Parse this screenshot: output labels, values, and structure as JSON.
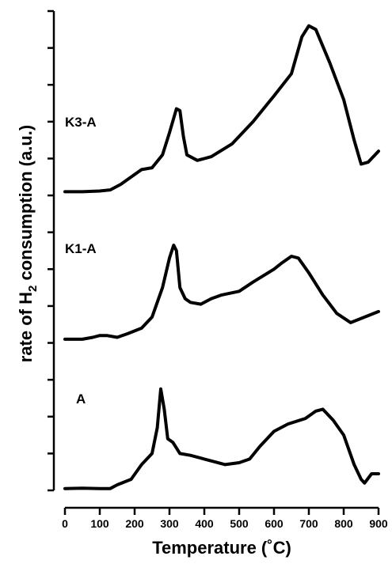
{
  "chart_data": {
    "type": "line",
    "xlabel": "Temperature (˚C)",
    "ylabel_parts": [
      "rate of H",
      "2",
      " consumption (a.u.)"
    ],
    "xlim": [
      0,
      900
    ],
    "x_ticks": [
      0,
      100,
      200,
      300,
      400,
      500,
      600,
      700,
      800,
      900
    ],
    "ylim": [
      0,
      13
    ],
    "y_ticks": [
      0,
      1,
      2,
      3,
      4,
      5,
      6,
      7,
      8,
      9,
      10,
      11,
      12,
      13
    ],
    "y_tick_labels_shown": false,
    "grid": false,
    "series": [
      {
        "name": "A",
        "points": [
          [
            0,
            0.05
          ],
          [
            50,
            0.06
          ],
          [
            100,
            0.05
          ],
          [
            130,
            0.05
          ],
          [
            150,
            0.15
          ],
          [
            190,
            0.3
          ],
          [
            220,
            0.7
          ],
          [
            250,
            1.0
          ],
          [
            265,
            1.7
          ],
          [
            275,
            2.75
          ],
          [
            285,
            2.2
          ],
          [
            295,
            1.4
          ],
          [
            310,
            1.3
          ],
          [
            330,
            1.0
          ],
          [
            360,
            0.95
          ],
          [
            400,
            0.85
          ],
          [
            460,
            0.7
          ],
          [
            500,
            0.75
          ],
          [
            530,
            0.85
          ],
          [
            560,
            1.2
          ],
          [
            600,
            1.6
          ],
          [
            640,
            1.8
          ],
          [
            690,
            1.95
          ],
          [
            720,
            2.15
          ],
          [
            740,
            2.2
          ],
          [
            770,
            1.9
          ],
          [
            800,
            1.5
          ],
          [
            830,
            0.7
          ],
          [
            850,
            0.3
          ],
          [
            860,
            0.2
          ],
          [
            880,
            0.45
          ],
          [
            900,
            0.45
          ]
        ]
      },
      {
        "name": "K1-A",
        "points": [
          [
            0,
            4.1
          ],
          [
            50,
            4.1
          ],
          [
            80,
            4.15
          ],
          [
            100,
            4.2
          ],
          [
            120,
            4.2
          ],
          [
            150,
            4.15
          ],
          [
            180,
            4.25
          ],
          [
            220,
            4.4
          ],
          [
            250,
            4.7
          ],
          [
            280,
            5.5
          ],
          [
            300,
            6.3
          ],
          [
            312,
            6.65
          ],
          [
            320,
            6.5
          ],
          [
            330,
            5.5
          ],
          [
            345,
            5.2
          ],
          [
            360,
            5.1
          ],
          [
            390,
            5.05
          ],
          [
            420,
            5.2
          ],
          [
            450,
            5.3
          ],
          [
            500,
            5.4
          ],
          [
            540,
            5.65
          ],
          [
            600,
            6.0
          ],
          [
            620,
            6.15
          ],
          [
            650,
            6.35
          ],
          [
            670,
            6.3
          ],
          [
            700,
            5.9
          ],
          [
            740,
            5.3
          ],
          [
            780,
            4.8
          ],
          [
            820,
            4.55
          ],
          [
            860,
            4.7
          ],
          [
            900,
            4.85
          ]
        ]
      },
      {
        "name": "K3-A",
        "points": [
          [
            0,
            8.1
          ],
          [
            50,
            8.1
          ],
          [
            100,
            8.12
          ],
          [
            130,
            8.15
          ],
          [
            160,
            8.3
          ],
          [
            190,
            8.5
          ],
          [
            220,
            8.7
          ],
          [
            250,
            8.75
          ],
          [
            280,
            9.1
          ],
          [
            300,
            9.7
          ],
          [
            320,
            10.35
          ],
          [
            330,
            10.3
          ],
          [
            340,
            9.6
          ],
          [
            350,
            9.1
          ],
          [
            380,
            8.95
          ],
          [
            420,
            9.05
          ],
          [
            480,
            9.4
          ],
          [
            540,
            10.0
          ],
          [
            600,
            10.7
          ],
          [
            650,
            11.3
          ],
          [
            680,
            12.3
          ],
          [
            700,
            12.6
          ],
          [
            720,
            12.5
          ],
          [
            760,
            11.6
          ],
          [
            800,
            10.6
          ],
          [
            830,
            9.5
          ],
          [
            850,
            8.85
          ],
          [
            870,
            8.9
          ],
          [
            900,
            9.2
          ]
        ]
      }
    ]
  }
}
